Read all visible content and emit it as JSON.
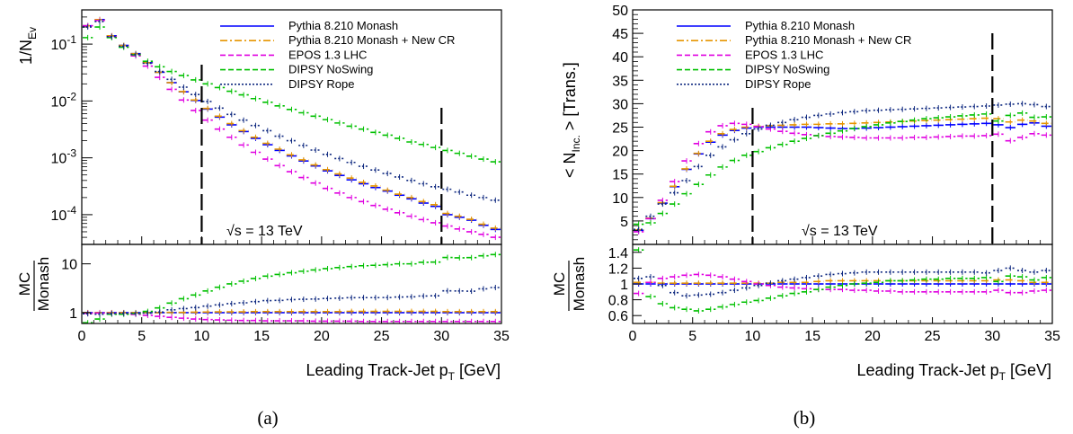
{
  "energy_label": "√s = 13 TeV",
  "chart_data": [
    {
      "type": "line",
      "caption": "(a)",
      "title": "",
      "xlabel": "Leading Track-Jet p_T [GeV]",
      "ylabel": "1/N_Ev",
      "ratio_ylabel_num": "MC",
      "ratio_ylabel_den": "Monash",
      "log_y": true,
      "xlim": [
        0,
        35
      ],
      "ylim": [
        3e-05,
        0.4
      ],
      "ratio_log_y": true,
      "ratio_ylim": [
        0.6,
        25
      ],
      "xticks": [
        "0",
        "5",
        "10",
        "15",
        "20",
        "25",
        "30",
        "35"
      ],
      "yticks": [
        "10^-4",
        "10^-3",
        "10^-2",
        "10^-1"
      ],
      "ratio_yticks": [
        "1",
        "10"
      ],
      "legend_position": "top-right",
      "cut_lines": [
        10,
        30
      ],
      "x": [
        0.5,
        1.5,
        2.5,
        3.5,
        4.5,
        5.5,
        6.5,
        7.5,
        8.5,
        9.5,
        10.5,
        11.5,
        12.5,
        13.5,
        14.5,
        15.5,
        16.5,
        17.5,
        18.5,
        19.5,
        20.5,
        21.5,
        22.5,
        23.5,
        24.5,
        25.5,
        26.5,
        27.5,
        28.5,
        29.5,
        30.5,
        31.5,
        32.5,
        33.5,
        34.5
      ],
      "series": [
        {
          "name": "Pythia 8.210 Monash",
          "color": "#0000ff",
          "style": "solid",
          "values": [
            0.21,
            0.27,
            0.14,
            0.095,
            0.068,
            0.047,
            0.032,
            0.021,
            0.0145,
            0.0102,
            0.0072,
            0.0052,
            0.0038,
            0.0029,
            0.0022,
            0.0017,
            0.00135,
            0.00108,
            0.00088,
            0.00072,
            0.00059,
            0.00049,
            0.00041,
            0.00035,
            0.0003,
            0.00026,
            0.00022,
            0.00019,
            0.00016,
            0.00014,
            0.0001,
            9e-05,
            8e-05,
            6.5e-05,
            5.5e-05
          ],
          "ratio": [
            1.0,
            1.0,
            1.0,
            1.0,
            1.0,
            1.0,
            1.0,
            1.0,
            1.0,
            1.0,
            1.0,
            1.0,
            1.0,
            1.0,
            1.0,
            1.0,
            1.0,
            1.0,
            1.0,
            1.0,
            1.0,
            1.0,
            1.0,
            1.0,
            1.0,
            1.0,
            1.0,
            1.0,
            1.0,
            1.0,
            1.0,
            1.0,
            1.0,
            1.0,
            1.0
          ]
        },
        {
          "name": "Pythia 8.210 Monash + New CR",
          "color": "#e69500",
          "style": "dashdot",
          "values": [
            0.21,
            0.27,
            0.14,
            0.095,
            0.068,
            0.047,
            0.032,
            0.021,
            0.0146,
            0.0104,
            0.0074,
            0.0054,
            0.004,
            0.003,
            0.0023,
            0.0018,
            0.00142,
            0.00113,
            0.00092,
            0.00075,
            0.00062,
            0.00052,
            0.00044,
            0.00037,
            0.00032,
            0.00027,
            0.00023,
            0.0002,
            0.00017,
            0.00015,
            0.000105,
            9.4e-05,
            8.3e-05,
            6.8e-05,
            5.8e-05
          ],
          "ratio": [
            1.0,
            1.0,
            1.0,
            1.0,
            1.0,
            1.0,
            1.0,
            1.01,
            1.01,
            1.02,
            1.03,
            1.04,
            1.04,
            1.04,
            1.05,
            1.05,
            1.05,
            1.05,
            1.05,
            1.05,
            1.05,
            1.05,
            1.06,
            1.06,
            1.06,
            1.06,
            1.06,
            1.06,
            1.06,
            1.06,
            1.05,
            1.05,
            1.05,
            1.05,
            1.05
          ]
        },
        {
          "name": "EPOS 1.3 LHC",
          "color": "#e000e0",
          "style": "dashed",
          "values": [
            0.21,
            0.26,
            0.135,
            0.09,
            0.062,
            0.041,
            0.026,
            0.016,
            0.0104,
            0.0068,
            0.0046,
            0.0032,
            0.0023,
            0.00168,
            0.00125,
            0.00095,
            0.00073,
            0.00057,
            0.00045,
            0.00036,
            0.00029,
            0.00024,
            0.0002,
            0.00017,
            0.000145,
            0.000125,
            0.000108,
            9.4e-05,
            8.2e-05,
            7.2e-05,
            6.3e-05,
            5.6e-05,
            5e-05,
            4.5e-05,
            4e-05
          ],
          "ratio": [
            0.97,
            0.98,
            0.97,
            0.95,
            0.92,
            0.88,
            0.84,
            0.8,
            0.77,
            0.74,
            0.72,
            0.71,
            0.7,
            0.69,
            0.69,
            0.68,
            0.68,
            0.68,
            0.68,
            0.67,
            0.67,
            0.67,
            0.67,
            0.66,
            0.66,
            0.66,
            0.66,
            0.66,
            0.66,
            0.66,
            0.66,
            0.66,
            0.66,
            0.66,
            0.66
          ]
        },
        {
          "name": "DIPSY NoSwing",
          "color": "#00c000",
          "style": "dashed",
          "values": [
            0.13,
            0.2,
            0.13,
            0.088,
            0.065,
            0.05,
            0.04,
            0.033,
            0.028,
            0.0235,
            0.02,
            0.0172,
            0.0148,
            0.0128,
            0.011,
            0.0095,
            0.0082,
            0.0071,
            0.0062,
            0.0054,
            0.0047,
            0.0041,
            0.0036,
            0.0032,
            0.0028,
            0.0025,
            0.0022,
            0.0019,
            0.00172,
            0.00152,
            0.00135,
            0.0012,
            0.00107,
            0.00095,
            0.00085
          ],
          "ratio": [
            0.62,
            0.74,
            0.93,
            0.93,
            0.96,
            1.06,
            1.25,
            1.57,
            1.93,
            2.3,
            2.78,
            3.31,
            3.89,
            4.41,
            5.0,
            5.59,
            6.07,
            6.57,
            7.05,
            7.5,
            7.97,
            8.37,
            8.78,
            9.14,
            9.33,
            9.62,
            10.0,
            10.0,
            10.75,
            10.86,
            13.5,
            13.3,
            13.4,
            14.6,
            15.5
          ]
        },
        {
          "name": "DIPSY Rope",
          "color": "#102a80",
          "style": "dotted",
          "values": [
            0.2,
            0.25,
            0.135,
            0.092,
            0.066,
            0.046,
            0.033,
            0.024,
            0.0175,
            0.013,
            0.0098,
            0.0075,
            0.0058,
            0.0046,
            0.0037,
            0.003,
            0.0024,
            0.002,
            0.00165,
            0.00137,
            0.00115,
            0.00097,
            0.00083,
            0.00071,
            0.00061,
            0.00053,
            0.00046,
            0.0004,
            0.00035,
            0.00031,
            0.00028,
            0.00025,
            0.00022,
            0.0002,
            0.00018
          ],
          "ratio": [
            0.95,
            0.93,
            0.96,
            0.97,
            0.97,
            0.98,
            1.03,
            1.14,
            1.21,
            1.27,
            1.36,
            1.44,
            1.53,
            1.59,
            1.68,
            1.76,
            1.78,
            1.85,
            1.88,
            1.9,
            1.95,
            1.98,
            2.02,
            2.03,
            2.03,
            2.04,
            2.09,
            2.11,
            2.19,
            2.21,
            2.8,
            2.78,
            2.75,
            3.08,
            3.27
          ]
        }
      ]
    },
    {
      "type": "line",
      "caption": "(b)",
      "title": "",
      "xlabel": "Leading Track-Jet p_T [GeV]",
      "ylabel": "< N_Inc. > [Trans.]",
      "ratio_ylabel_num": "MC",
      "ratio_ylabel_den": "Monash",
      "log_y": false,
      "xlim": [
        0,
        35
      ],
      "ylim": [
        0,
        50
      ],
      "ratio_log_y": false,
      "ratio_ylim": [
        0.5,
        1.5
      ],
      "xticks": [
        "0",
        "5",
        "10",
        "15",
        "20",
        "25",
        "30",
        "35"
      ],
      "yticks": [
        "5",
        "10",
        "15",
        "20",
        "25",
        "30",
        "35",
        "40",
        "45",
        "50"
      ],
      "ratio_yticks": [
        "0.6",
        "0.8",
        "1",
        "1.2",
        "1.4"
      ],
      "legend_position": "top-right",
      "cut_lines": [
        10,
        30
      ],
      "x": [
        0.5,
        1.5,
        2.5,
        3.5,
        4.5,
        5.5,
        6.5,
        7.5,
        8.5,
        9.5,
        10.5,
        11.5,
        12.5,
        13.5,
        14.5,
        15.5,
        16.5,
        17.5,
        18.5,
        19.5,
        20.5,
        21.5,
        22.5,
        23.5,
        24.5,
        25.5,
        26.5,
        27.5,
        28.5,
        29.5,
        30.5,
        31.5,
        32.5,
        33.5,
        34.5
      ],
      "series": [
        {
          "name": "Pythia 8.210 Monash",
          "color": "#0000ff",
          "style": "solid",
          "values": [
            3.0,
            5.5,
            8.8,
            12.3,
            16.0,
            19.3,
            21.8,
            23.3,
            24.3,
            24.8,
            25.0,
            25.0,
            25.0,
            25.0,
            25.0,
            24.9,
            24.8,
            24.7,
            24.7,
            24.8,
            24.9,
            25.0,
            25.1,
            25.2,
            25.3,
            25.4,
            25.5,
            25.6,
            25.7,
            25.8,
            25.5,
            24.9,
            25.6,
            25.9,
            25.2
          ],
          "ratio": [
            1.0,
            1.0,
            1.0,
            1.0,
            1.0,
            1.0,
            1.0,
            1.0,
            1.0,
            1.0,
            1.0,
            1.0,
            1.0,
            1.0,
            1.0,
            1.0,
            1.0,
            1.0,
            1.0,
            1.0,
            1.0,
            1.0,
            1.0,
            1.0,
            1.0,
            1.0,
            1.0,
            1.0,
            1.0,
            1.0,
            1.0,
            1.0,
            1.0,
            1.0,
            1.0
          ]
        },
        {
          "name": "Pythia 8.210 Monash + New CR",
          "color": "#e69500",
          "style": "dashdot",
          "values": [
            3.1,
            5.6,
            8.9,
            12.4,
            16.1,
            19.4,
            22.0,
            23.6,
            24.5,
            25.0,
            25.2,
            25.3,
            25.4,
            25.5,
            25.6,
            25.6,
            25.7,
            25.7,
            25.8,
            25.9,
            26.0,
            26.1,
            26.2,
            26.3,
            26.4,
            26.5,
            26.6,
            26.7,
            26.8,
            26.9,
            26.8,
            26.1,
            26.5,
            26.3,
            25.8
          ],
          "ratio": [
            1.02,
            1.02,
            1.01,
            1.01,
            1.01,
            1.01,
            1.01,
            1.01,
            1.01,
            1.01,
            1.01,
            1.01,
            1.02,
            1.02,
            1.02,
            1.03,
            1.04,
            1.04,
            1.04,
            1.04,
            1.04,
            1.04,
            1.04,
            1.04,
            1.04,
            1.04,
            1.04,
            1.04,
            1.04,
            1.04,
            1.05,
            1.05,
            1.04,
            1.02,
            1.02
          ]
        },
        {
          "name": "EPOS 1.3 LHC",
          "color": "#e000e0",
          "style": "dashed",
          "values": [
            2.7,
            5.5,
            9.4,
            13.4,
            17.8,
            21.5,
            24.0,
            25.3,
            25.8,
            25.6,
            25.1,
            24.6,
            24.1,
            23.7,
            23.4,
            23.2,
            23.0,
            22.9,
            22.8,
            22.7,
            22.7,
            22.7,
            22.7,
            22.8,
            22.8,
            22.9,
            23.0,
            23.1,
            23.1,
            23.2,
            23.5,
            22.1,
            22.8,
            23.6,
            23.3
          ],
          "ratio": [
            0.88,
            1.02,
            1.07,
            1.09,
            1.11,
            1.12,
            1.11,
            1.09,
            1.06,
            1.03,
            1.0,
            0.98,
            0.96,
            0.95,
            0.94,
            0.93,
            0.93,
            0.93,
            0.92,
            0.92,
            0.91,
            0.91,
            0.9,
            0.9,
            0.9,
            0.9,
            0.9,
            0.9,
            0.9,
            0.9,
            0.92,
            0.89,
            0.89,
            0.91,
            0.92
          ]
        },
        {
          "name": "DIPSY NoSwing",
          "color": "#00c000",
          "style": "dashed",
          "values": [
            4.3,
            4.6,
            6.6,
            8.6,
            10.8,
            12.8,
            14.8,
            16.5,
            17.9,
            19.0,
            19.8,
            20.6,
            21.3,
            22.0,
            22.6,
            23.2,
            23.7,
            24.2,
            24.7,
            25.1,
            25.5,
            25.9,
            26.2,
            26.5,
            26.8,
            27.0,
            27.2,
            27.4,
            27.6,
            27.8,
            26.3,
            27.5,
            28.0,
            27.1,
            27.2
          ],
          "ratio": [
            1.43,
            0.84,
            0.75,
            0.7,
            0.68,
            0.66,
            0.68,
            0.71,
            0.74,
            0.77,
            0.79,
            0.82,
            0.85,
            0.88,
            0.9,
            0.93,
            0.96,
            0.98,
            1.0,
            1.01,
            1.02,
            1.04,
            1.04,
            1.05,
            1.06,
            1.06,
            1.07,
            1.07,
            1.07,
            1.08,
            1.03,
            1.1,
            1.09,
            1.05,
            1.08
          ]
        },
        {
          "name": "DIPSY Rope",
          "color": "#102a80",
          "style": "dotted",
          "values": [
            3.2,
            6.0,
            8.6,
            11.0,
            13.6,
            16.6,
            19.0,
            20.8,
            22.3,
            23.6,
            24.6,
            25.4,
            26.0,
            26.6,
            27.1,
            27.5,
            27.8,
            28.1,
            28.3,
            28.5,
            28.6,
            28.7,
            28.8,
            28.9,
            29.0,
            29.1,
            29.2,
            29.3,
            29.4,
            29.5,
            29.7,
            29.9,
            30.0,
            29.8,
            29.4
          ],
          "ratio": [
            1.07,
            1.09,
            0.98,
            0.89,
            0.85,
            0.86,
            0.87,
            0.89,
            0.92,
            0.95,
            0.98,
            1.01,
            1.04,
            1.06,
            1.08,
            1.1,
            1.12,
            1.13,
            1.14,
            1.15,
            1.15,
            1.15,
            1.15,
            1.15,
            1.15,
            1.15,
            1.15,
            1.15,
            1.15,
            1.14,
            1.17,
            1.2,
            1.17,
            1.15,
            1.17
          ]
        }
      ]
    }
  ]
}
